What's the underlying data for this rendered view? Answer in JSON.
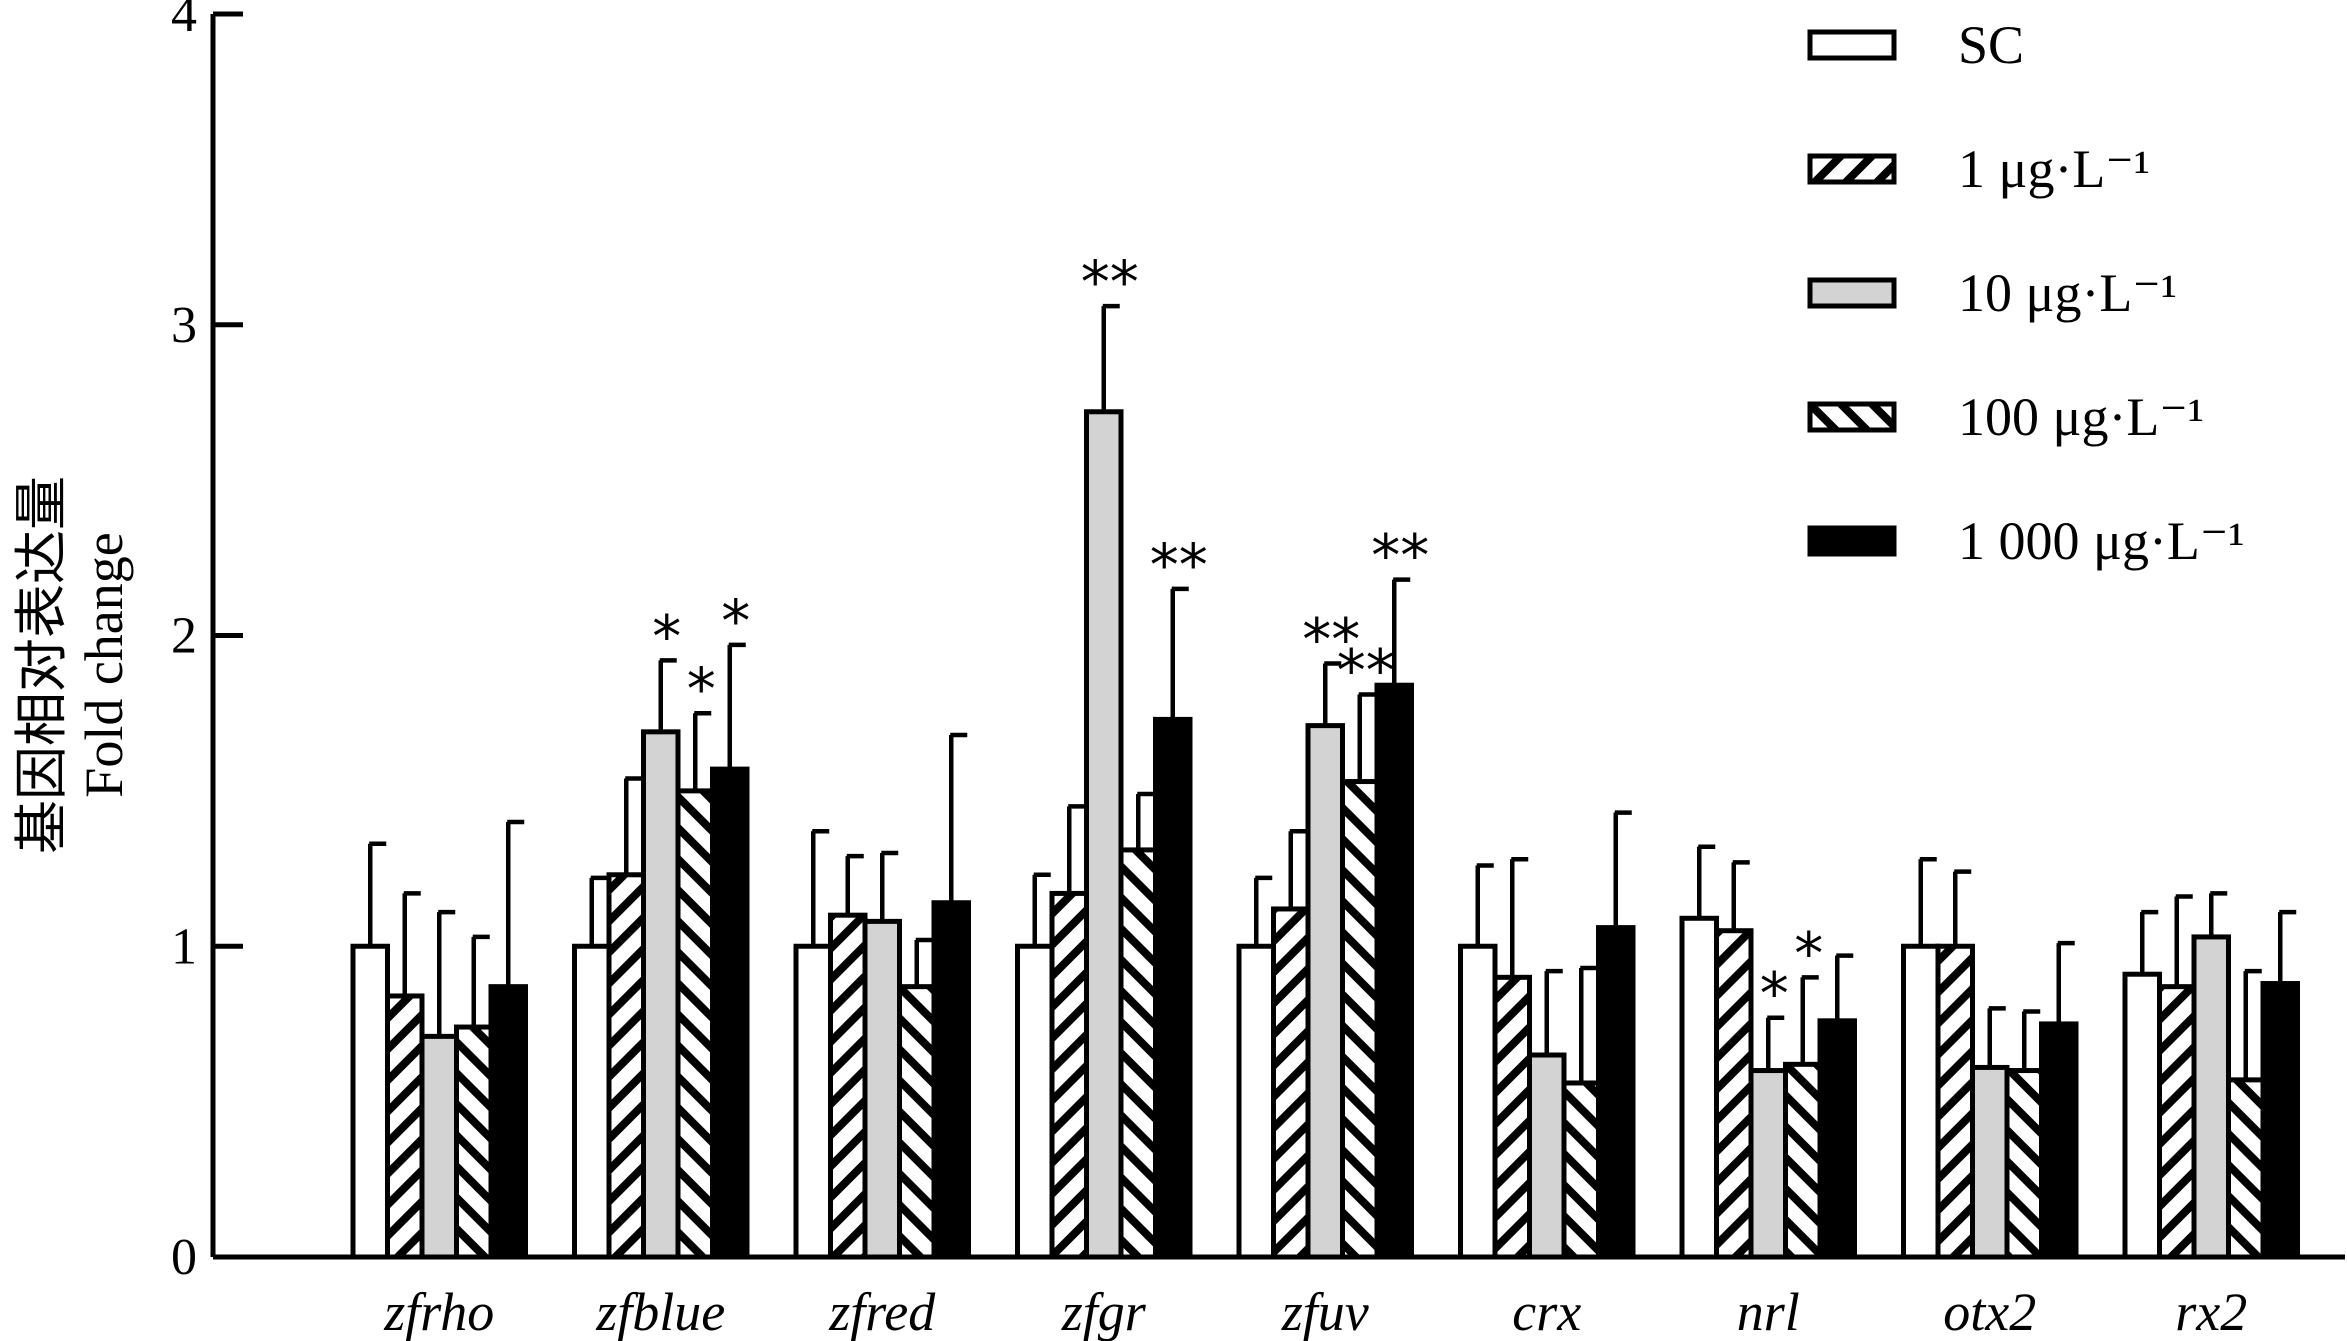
{
  "chart_data": {
    "type": "bar",
    "ylabel_cn": "基因相对表达量",
    "ylabel_en": "Fold change",
    "xlabel": "",
    "ylim": [
      0,
      4
    ],
    "yticks": [
      "0",
      "1",
      "2",
      "3",
      "4"
    ],
    "grid": false,
    "legend_position": "top-right",
    "categories": [
      "zfrho",
      "zfblue",
      "zfred",
      "zfgr",
      "zfuv",
      "crx",
      "nrl",
      "otx2",
      "rx2"
    ],
    "series": [
      {
        "name": "SC",
        "fill": "white",
        "values": [
          1.0,
          1.0,
          1.0,
          1.0,
          1.0,
          1.0,
          1.09,
          1.0,
          0.91
        ],
        "errors": [
          0.33,
          0.22,
          0.37,
          0.23,
          0.22,
          0.26,
          0.23,
          0.28,
          0.2
        ],
        "significance": [
          "",
          "",
          "",
          "",
          "",
          "",
          "",
          "",
          ""
        ]
      },
      {
        "name": "1 μg·L⁻¹",
        "fill": "hatch-right",
        "values": [
          0.84,
          1.23,
          1.1,
          1.17,
          1.12,
          0.9,
          1.05,
          1.0,
          0.87
        ],
        "errors": [
          0.33,
          0.31,
          0.19,
          0.28,
          0.25,
          0.38,
          0.22,
          0.24,
          0.29
        ],
        "significance": [
          "",
          "",
          "",
          "",
          "",
          "",
          "",
          "",
          ""
        ]
      },
      {
        "name": "10 μg·L⁻¹",
        "fill": "gray",
        "values": [
          0.71,
          1.69,
          1.08,
          2.72,
          1.71,
          0.65,
          0.6,
          0.61,
          1.03
        ],
        "errors": [
          0.4,
          0.23,
          0.22,
          0.34,
          0.2,
          0.27,
          0.17,
          0.19,
          0.14
        ],
        "significance": [
          "",
          "*",
          "",
          "**",
          "**",
          "",
          "*",
          "",
          ""
        ]
      },
      {
        "name": "100 μg·L⁻¹",
        "fill": "hatch-left",
        "values": [
          0.74,
          1.5,
          0.87,
          1.31,
          1.53,
          0.56,
          0.62,
          0.6,
          0.57
        ],
        "errors": [
          0.29,
          0.25,
          0.15,
          0.18,
          0.28,
          0.37,
          0.28,
          0.19,
          0.35
        ],
        "significance": [
          "",
          "*",
          "",
          "",
          "**",
          "",
          "*",
          "",
          ""
        ]
      },
      {
        "name": "1 000 μg·L⁻¹",
        "fill": "black",
        "values": [
          0.87,
          1.57,
          1.14,
          1.73,
          1.84,
          1.06,
          0.76,
          0.75,
          0.88
        ],
        "errors": [
          0.53,
          0.4,
          0.54,
          0.42,
          0.34,
          0.37,
          0.21,
          0.26,
          0.23
        ],
        "significance": [
          "",
          "*",
          "",
          "**",
          "**",
          "",
          "",
          "",
          ""
        ]
      }
    ]
  }
}
